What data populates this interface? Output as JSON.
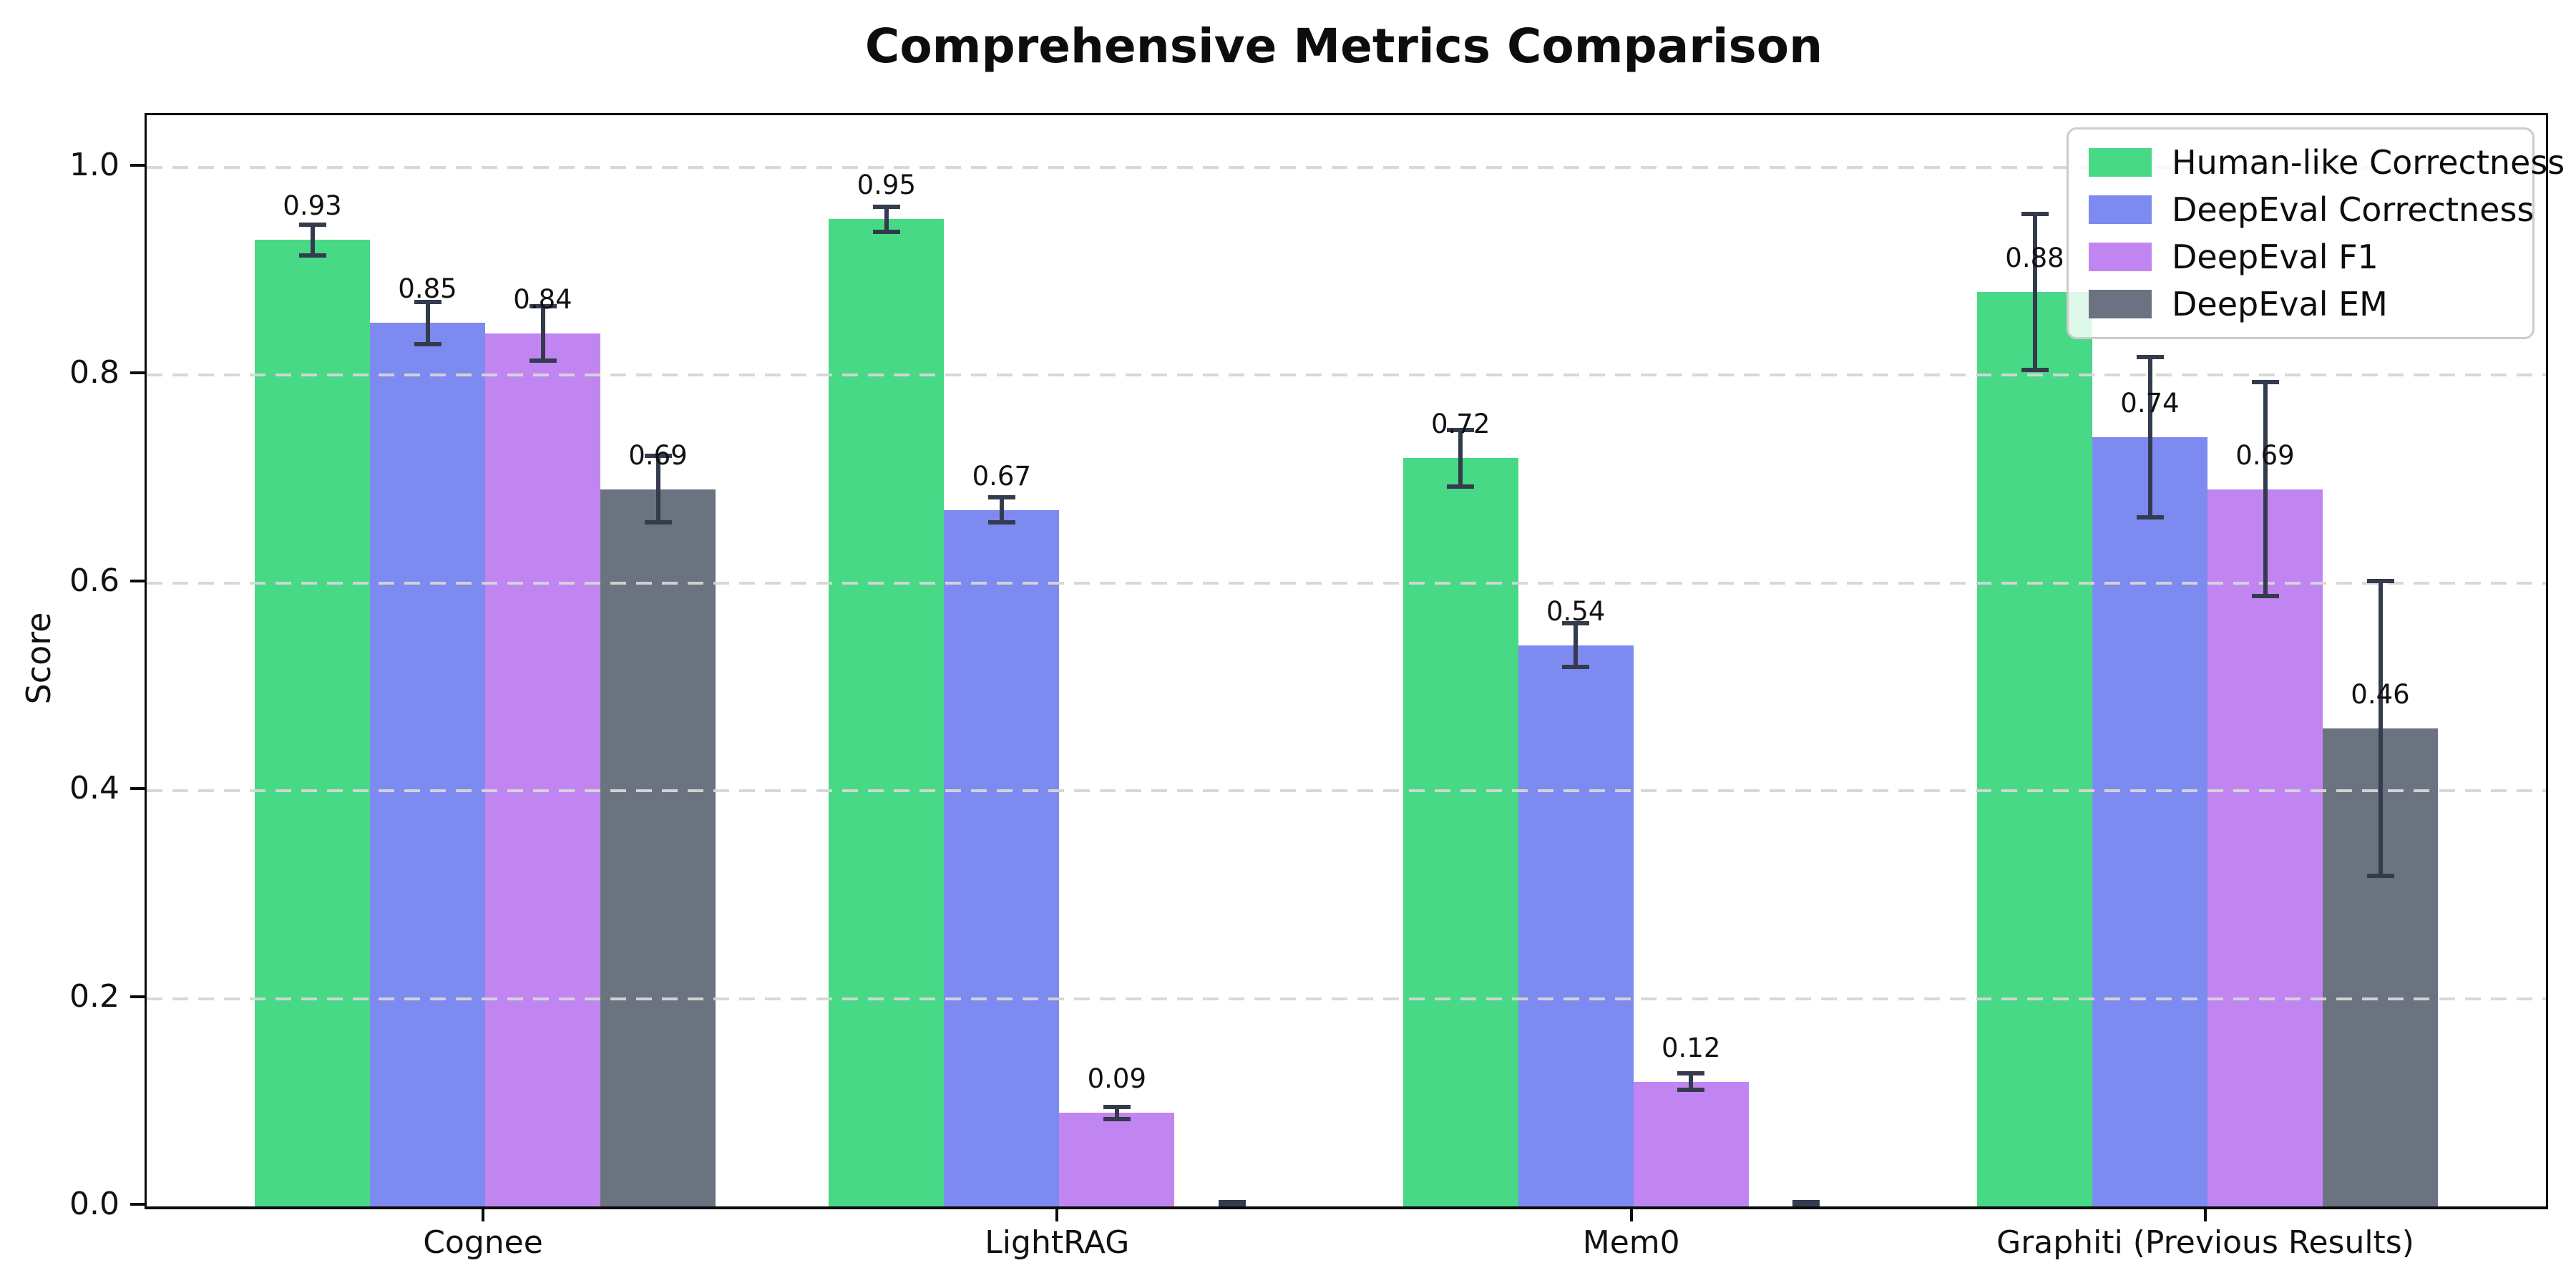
{
  "title": "Comprehensive Metrics Comparison",
  "ylabel": "Score",
  "colors": {
    "human_like": "#47d985",
    "deepeval_correctness": "#7d8af0",
    "deepeval_f1": "#c185f2",
    "deepeval_em": "#6b7280",
    "error_bar": "#333b4d",
    "grid": "#d6d6d6",
    "spine": "#0b0b0b",
    "legend_border": "#cccccc"
  },
  "chart_data": {
    "type": "bar",
    "title": "Comprehensive Metrics Comparison",
    "xlabel": "",
    "ylabel": "Score",
    "categories": [
      "Cognee",
      "LightRAG",
      "Mem0",
      "Graphiti (Previous Results)"
    ],
    "series": [
      {
        "name": "Human-like Correctness",
        "color": "#47d985",
        "values": [
          0.93,
          0.95,
          0.72,
          0.88
        ],
        "errors": [
          0.015,
          0.012,
          0.027,
          0.075
        ],
        "labels": [
          "0.93",
          "0.95",
          "0.72",
          "0.88"
        ]
      },
      {
        "name": "DeepEval Correctness",
        "color": "#7d8af0",
        "values": [
          0.85,
          0.67,
          0.54,
          0.74
        ],
        "errors": [
          0.02,
          0.012,
          0.021,
          0.077
        ],
        "labels": [
          "0.85",
          "0.67",
          "0.54",
          "0.74"
        ]
      },
      {
        "name": "DeepEval F1",
        "color": "#c185f2",
        "values": [
          0.84,
          0.09,
          0.12,
          0.69
        ],
        "errors": [
          0.026,
          0.006,
          0.008,
          0.103
        ],
        "labels": [
          "0.84",
          "0.09",
          "0.12",
          "0.69"
        ]
      },
      {
        "name": "DeepEval EM",
        "color": "#6b7280",
        "values": [
          0.69,
          0.0,
          0.0,
          0.46
        ],
        "errors": [
          0.032,
          0.004,
          0.004,
          0.142
        ],
        "labels": [
          "0.69",
          null,
          null,
          "0.46"
        ]
      }
    ],
    "ylim": [
      0.0,
      1.05
    ],
    "yticks": [
      "0.0",
      "0.2",
      "0.4",
      "0.6",
      "0.8",
      "1.0"
    ],
    "grid": "horizontal dashed, drawn over bars",
    "legend_position": "upper right",
    "legend_entries": [
      "Human-like Correctness",
      "DeepEval Correctness",
      "DeepEval F1",
      "DeepEval EM"
    ]
  }
}
